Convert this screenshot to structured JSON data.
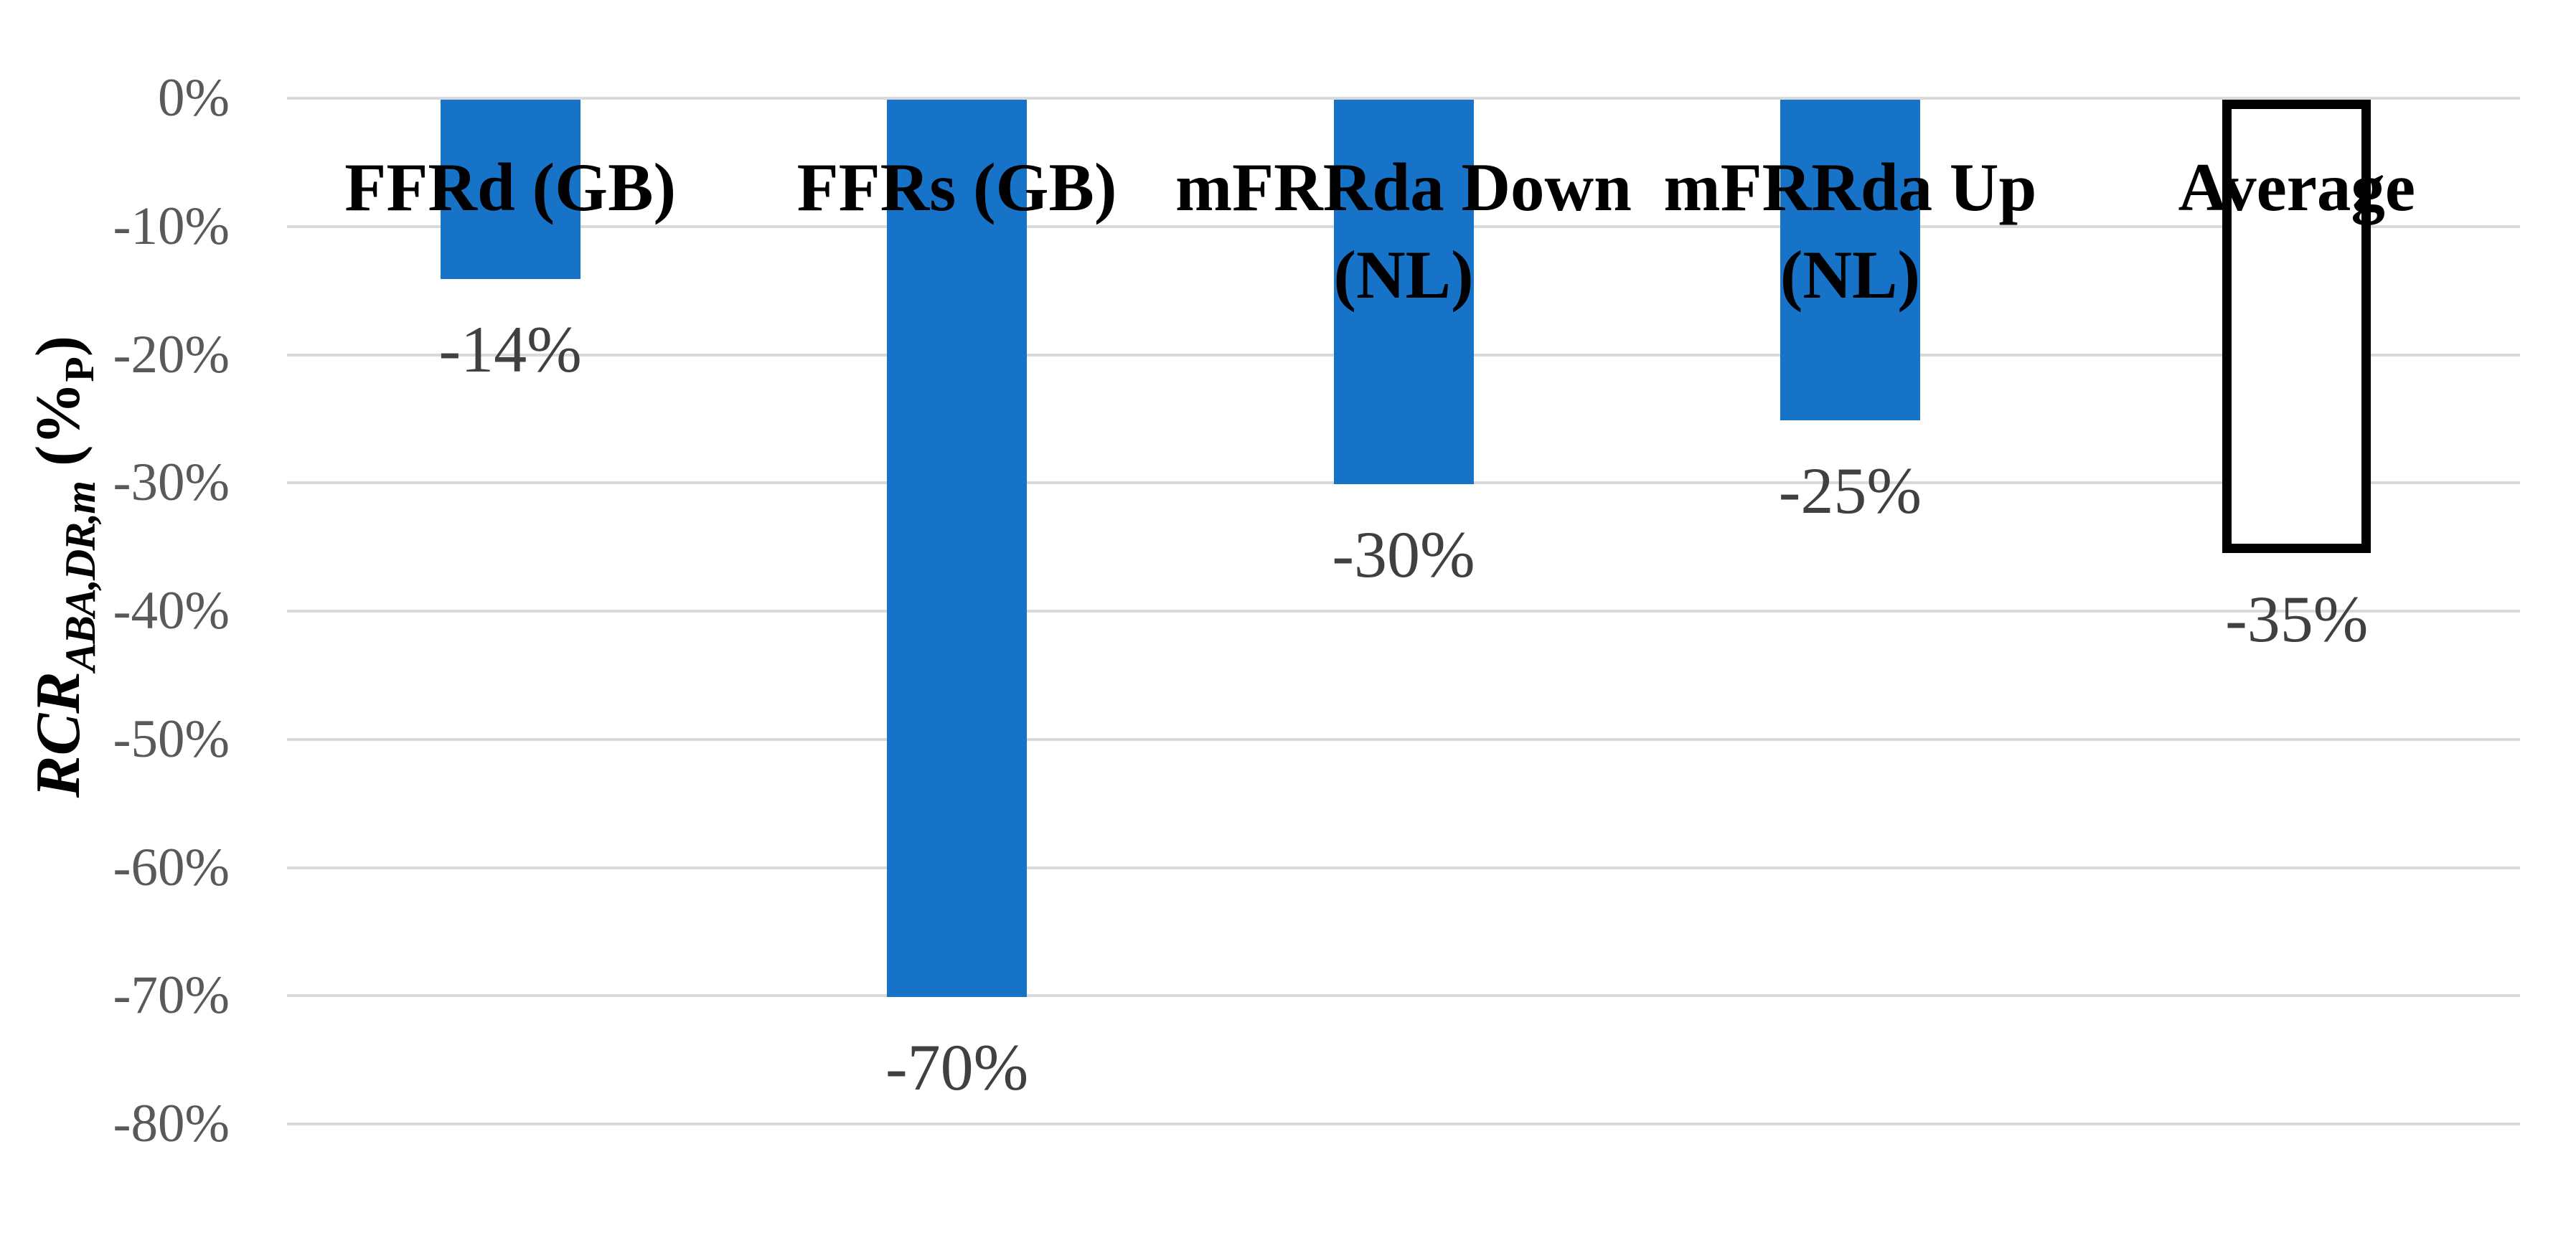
{
  "chart_data": {
    "type": "bar",
    "title": "",
    "categories": [
      "FFRd (GB)",
      "FFRs (GB)",
      "mFRRda Down (NL)",
      "mFRRda Up (NL)",
      "Average"
    ],
    "categories_lines": [
      [
        "FFRd (GB)"
      ],
      [
        "FFRs (GB)"
      ],
      [
        "mFRRda Down",
        "(NL)"
      ],
      [
        "mFRRda Up",
        "(NL)"
      ],
      [
        "Average"
      ]
    ],
    "values": [
      -14,
      -70,
      -30,
      -25,
      -35
    ],
    "data_labels": [
      "-14%",
      "-70%",
      "-30%",
      "-25%",
      "-35%"
    ],
    "yticks": [
      "0%",
      "-10%",
      "-20%",
      "-30%",
      "-40%",
      "-50%",
      "-60%",
      "-70%",
      "-80%"
    ],
    "ytick_values": [
      0,
      -10,
      -20,
      -30,
      -40,
      -50,
      -60,
      -70,
      -80
    ],
    "ylim": [
      0,
      -80
    ],
    "ylabel": "RCR_ABA,DR,m (%P)",
    "ylabel_parts": {
      "main": "RCR",
      "subscript": "ABA,DR,m",
      "unit_prefix": " (%",
      "unit_subscript": "P",
      "unit_suffix": ")"
    },
    "grid": true,
    "legend": "none",
    "bar_styles": [
      "filled",
      "filled",
      "filled",
      "filled",
      "outlined"
    ],
    "colors": {
      "bar": "#1673C7",
      "average_fill": "#FFFFFF",
      "average_border": "#000000",
      "gridline": "#D9D9D9",
      "tick_text": "#595959",
      "data_label_text": "#404040",
      "category_text": "#000000"
    }
  }
}
